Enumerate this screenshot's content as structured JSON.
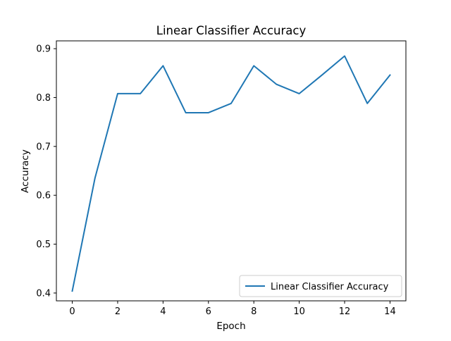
{
  "chart_data": {
    "type": "line",
    "title": "Linear Classifier Accuracy",
    "xlabel": "Epoch",
    "ylabel": "Accuracy",
    "xlim": [
      -0.7,
      14.7
    ],
    "ylim": [
      0.384,
      0.916
    ],
    "xticks": [
      0,
      2,
      4,
      6,
      8,
      10,
      12,
      14
    ],
    "yticks": [
      0.4,
      0.5,
      0.6,
      0.7,
      0.8,
      0.9
    ],
    "xtick_labels": [
      "0",
      "2",
      "4",
      "6",
      "8",
      "10",
      "12",
      "14"
    ],
    "ytick_labels": [
      "0.4",
      "0.5",
      "0.6",
      "0.7",
      "0.8",
      "0.9"
    ],
    "grid": false,
    "legend": {
      "position": "bottom-right",
      "entries": [
        "Linear Classifier Accuracy"
      ]
    },
    "series": [
      {
        "name": "Linear Classifier Accuracy",
        "color": "#1f77b4",
        "x": [
          0,
          1,
          2,
          3,
          4,
          5,
          6,
          7,
          8,
          9,
          10,
          11,
          12,
          13,
          14
        ],
        "y": [
          0.404,
          0.635,
          0.808,
          0.808,
          0.865,
          0.769,
          0.769,
          0.788,
          0.865,
          0.827,
          0.808,
          0.846,
          0.885,
          0.788,
          0.846
        ]
      }
    ]
  }
}
